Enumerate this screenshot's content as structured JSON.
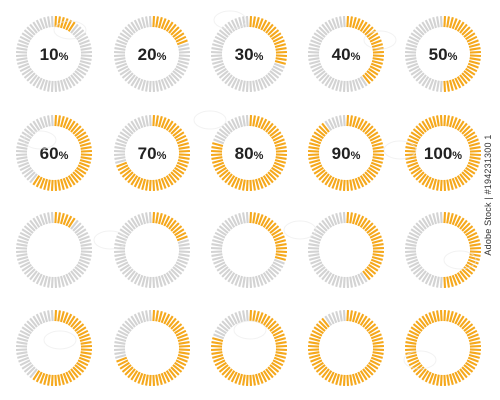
{
  "colors": {
    "fill": "#f5a81c",
    "empty": "#d3d3d3",
    "label": "#222222",
    "background": "#ffffff"
  },
  "gauges": {
    "labeled_rows": [
      [
        {
          "label": "10",
          "unit": "%",
          "value": 10
        },
        {
          "label": "20",
          "unit": "%",
          "value": 20
        },
        {
          "label": "30",
          "unit": "%",
          "value": 30
        },
        {
          "label": "40",
          "unit": "%",
          "value": 40
        },
        {
          "label": "50",
          "unit": "%",
          "value": 50
        }
      ],
      [
        {
          "label": "60",
          "unit": "%",
          "value": 60
        },
        {
          "label": "70",
          "unit": "%",
          "value": 70
        },
        {
          "label": "80",
          "unit": "%",
          "value": 80
        },
        {
          "label": "90",
          "unit": "%",
          "value": 90
        },
        {
          "label": "100",
          "unit": "%",
          "value": 100
        }
      ]
    ],
    "unlabeled_rows": [
      [
        10,
        20,
        30,
        40,
        50
      ],
      [
        60,
        70,
        80,
        90,
        100
      ]
    ]
  },
  "stock_id": "Adobe Stock | #194231300 1"
}
